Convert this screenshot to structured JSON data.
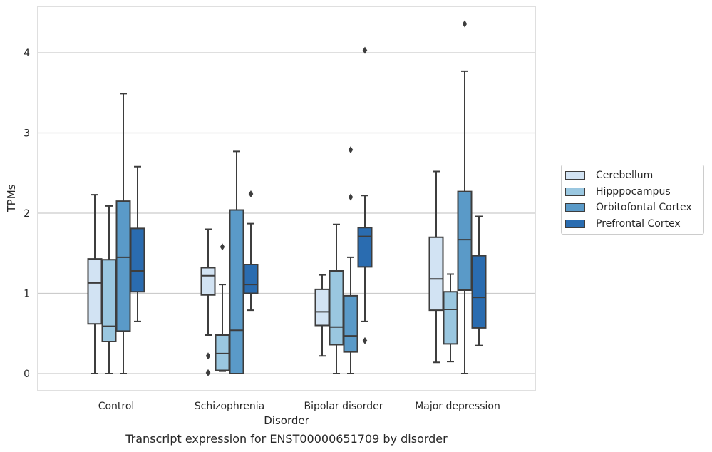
{
  "caption": "Transcript expression for ENST00000651709 by disorder",
  "chart_data": {
    "type": "boxplot",
    "xlabel": "Disorder",
    "ylabel": "TPMs",
    "ylim": [
      -0.2,
      4.6
    ],
    "yticks": [
      0,
      1,
      2,
      3,
      4
    ],
    "grid": "horizontal",
    "legend_position": "center-right, outside plot",
    "categories": [
      "Control",
      "Schizophrenia",
      "Bipolar disorder",
      "Major depression"
    ],
    "series": [
      {
        "name": "Cerebellum",
        "color": "#d2e3f3",
        "boxes": [
          {
            "whislo": 0.0,
            "q1": 0.62,
            "med": 1.13,
            "q3": 1.43,
            "whishi": 2.23,
            "fliers": []
          },
          {
            "whislo": 0.48,
            "q1": 0.98,
            "med": 1.22,
            "q3": 1.32,
            "whishi": 1.8,
            "fliers": [
              0.22,
              0.01
            ]
          },
          {
            "whislo": 0.22,
            "q1": 0.6,
            "med": 0.77,
            "q3": 1.05,
            "whishi": 1.23,
            "fliers": []
          },
          {
            "whislo": 0.14,
            "q1": 0.79,
            "med": 1.18,
            "q3": 1.7,
            "whishi": 2.52,
            "fliers": []
          }
        ]
      },
      {
        "name": "Hipppocampus",
        "color": "#9ac7e0",
        "boxes": [
          {
            "whislo": 0.0,
            "q1": 0.4,
            "med": 0.59,
            "q3": 1.42,
            "whishi": 2.09,
            "fliers": []
          },
          {
            "whislo": 0.03,
            "q1": 0.04,
            "med": 0.25,
            "q3": 0.48,
            "whishi": 1.11,
            "fliers": [
              1.58
            ]
          },
          {
            "whislo": 0.0,
            "q1": 0.36,
            "med": 0.58,
            "q3": 1.28,
            "whishi": 1.86,
            "fliers": []
          },
          {
            "whislo": 0.15,
            "q1": 0.37,
            "med": 0.8,
            "q3": 1.02,
            "whishi": 1.24,
            "fliers": []
          }
        ]
      },
      {
        "name": "Orbitofontal Cortex",
        "color": "#5a9ac8",
        "boxes": [
          {
            "whislo": 0.0,
            "q1": 0.53,
            "med": 1.45,
            "q3": 2.15,
            "whishi": 3.49,
            "fliers": []
          },
          {
            "whislo": 0.0,
            "q1": 0.0,
            "med": 0.54,
            "q3": 2.04,
            "whishi": 2.77,
            "fliers": []
          },
          {
            "whislo": 0.0,
            "q1": 0.27,
            "med": 0.47,
            "q3": 0.97,
            "whishi": 1.45,
            "fliers": [
              2.79,
              2.2
            ]
          },
          {
            "whislo": 0.0,
            "q1": 1.04,
            "med": 1.67,
            "q3": 2.27,
            "whishi": 3.77,
            "fliers": [
              4.36
            ]
          }
        ]
      },
      {
        "name": "Prefrontal Cortex",
        "color": "#2a6cb0",
        "boxes": [
          {
            "whislo": 0.65,
            "q1": 1.02,
            "med": 1.28,
            "q3": 1.81,
            "whishi": 2.58,
            "fliers": []
          },
          {
            "whislo": 0.79,
            "q1": 1.0,
            "med": 1.11,
            "q3": 1.36,
            "whishi": 1.87,
            "fliers": [
              2.24
            ]
          },
          {
            "whislo": 0.65,
            "q1": 1.33,
            "med": 1.71,
            "q3": 1.82,
            "whishi": 2.22,
            "fliers": [
              4.03,
              0.41
            ]
          },
          {
            "whislo": 0.35,
            "q1": 0.57,
            "med": 0.95,
            "q3": 1.47,
            "whishi": 1.96,
            "fliers": []
          }
        ]
      }
    ]
  }
}
